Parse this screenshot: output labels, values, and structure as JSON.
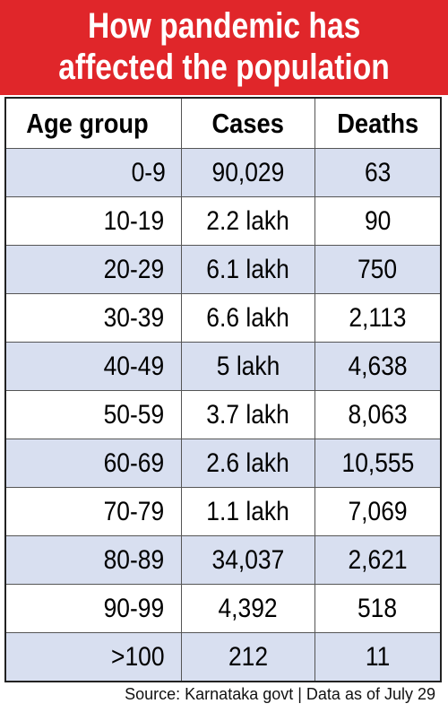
{
  "header": {
    "title_lines": [
      "How pandemic has",
      "affected the population"
    ]
  },
  "table": {
    "columns": [
      "Age group",
      "Cases",
      "Deaths"
    ],
    "rows": [
      [
        "0-9",
        "90,029",
        "63"
      ],
      [
        "10-19",
        "2.2 lakh",
        "90"
      ],
      [
        "20-29",
        "6.1 lakh",
        "750"
      ],
      [
        "30-39",
        "6.6 lakh",
        "2,113"
      ],
      [
        "40-49",
        "5 lakh",
        "4,638"
      ],
      [
        "50-59",
        "3.7 lakh",
        "8,063"
      ],
      [
        "60-69",
        "2.6 lakh",
        "10,555"
      ],
      [
        "70-79",
        "1.1 lakh",
        "7,069"
      ],
      [
        "80-89",
        "34,037",
        "2,621"
      ],
      [
        "90-99",
        "4,392",
        "518"
      ],
      [
        ">100",
        "212",
        "11"
      ]
    ]
  },
  "footer": {
    "source": "Source: Karnataka govt | Data as of July 29"
  }
}
